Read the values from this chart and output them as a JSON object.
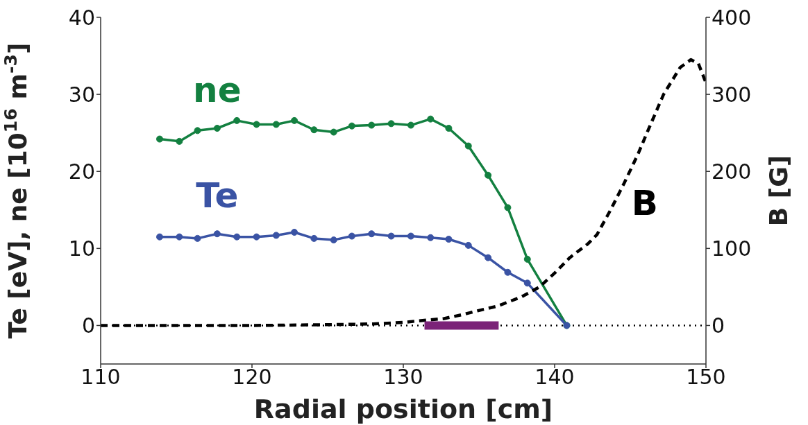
{
  "chart_data": {
    "type": "line",
    "xlabel": "Radial position [cm]",
    "ylabel": "Te [eV], ne [10$^{16}$ m$^{-3}$]",
    "y2label": "B [G]",
    "xlim": [
      110,
      150
    ],
    "xticks": [
      110,
      120,
      130,
      140,
      150
    ],
    "ylim": [
      -5,
      40
    ],
    "yticks": [
      0,
      10,
      20,
      30,
      40
    ],
    "y2lim": [
      -50,
      400
    ],
    "y2ticks": [
      0,
      100,
      200,
      300,
      400
    ],
    "series": [
      {
        "name": "ne",
        "color": "#138040",
        "marker": "circle",
        "line_style": "solid",
        "x": [
          113.9,
          115.2,
          116.4,
          117.7,
          119.0,
          120.3,
          121.6,
          122.8,
          124.1,
          125.4,
          126.6,
          127.9,
          129.2,
          130.5,
          131.8,
          133.0,
          134.3,
          135.6,
          136.9,
          138.2,
          140.8
        ],
        "values": [
          24.2,
          23.9,
          25.3,
          25.6,
          26.6,
          26.1,
          26.1,
          26.6,
          25.4,
          25.1,
          25.9,
          26.0,
          26.2,
          26.0,
          26.8,
          25.6,
          23.3,
          19.5,
          15.3,
          8.6,
          0
        ]
      },
      {
        "name": "Te",
        "color": "#3a53a4",
        "marker": "circle",
        "line_style": "solid",
        "x": [
          113.9,
          115.2,
          116.4,
          117.7,
          119.0,
          120.3,
          121.6,
          122.8,
          124.1,
          125.4,
          126.6,
          127.9,
          129.2,
          130.5,
          131.8,
          133.0,
          134.3,
          135.6,
          136.9,
          138.2,
          140.8
        ],
        "values": [
          11.5,
          11.5,
          11.3,
          11.9,
          11.5,
          11.5,
          11.7,
          12.1,
          11.3,
          11.1,
          11.6,
          11.9,
          11.6,
          11.6,
          11.4,
          11.2,
          10.4,
          8.8,
          6.9,
          5.5,
          0
        ]
      },
      {
        "name": "B",
        "color": "#000000",
        "marker": "none",
        "line_style": "dashed",
        "axis": "y2",
        "x": [
          110,
          120,
          125,
          128,
          130,
          131,
          132.7,
          133.9,
          134.9,
          136.2,
          137.8,
          139,
          140,
          141,
          142.2,
          142.8,
          143.7,
          144.6,
          145.5,
          146.1,
          147.2,
          148.3,
          149,
          149.5,
          150
        ],
        "values": [
          0,
          0,
          1,
          2,
          4,
          6,
          9,
          14,
          19,
          25,
          37,
          50,
          68,
          88,
          106,
          118,
          150,
          185,
          222,
          250,
          300,
          335,
          345,
          340,
          315
        ]
      },
      {
        "color": "#7b2378",
        "marker": "none",
        "line_style": "solid",
        "x": [
          131.4,
          136.3
        ],
        "values": [
          0,
          0
        ]
      }
    ],
    "ref_lines": [
      {
        "axis": "y",
        "value": 0,
        "line_style": "dotted",
        "color": "#000000"
      }
    ]
  }
}
